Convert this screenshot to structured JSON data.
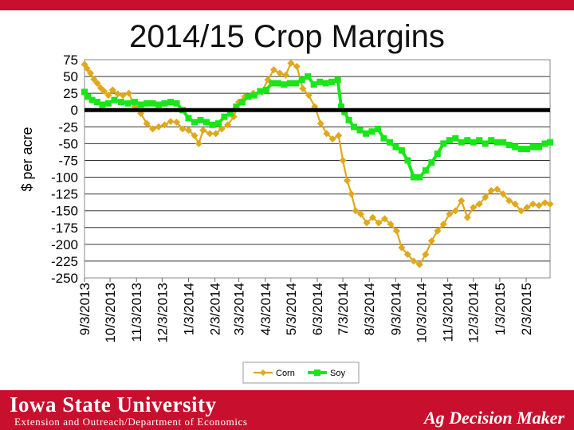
{
  "slide": {
    "footer_logo": "Iowa State University",
    "footer_subtitle": "Extension and Outreach/Department of Economics",
    "footer_brand": "Ag Decision Maker"
  },
  "colors": {
    "corn": "#e0a81c",
    "soy": "#19e619",
    "footer": "#c8102e",
    "zero_line": "#000000"
  },
  "chart_data": {
    "type": "line",
    "title": "2014/15 Crop Margins",
    "ylabel": "$ per acre",
    "xlabel": "",
    "ylim": [
      -250,
      75
    ],
    "yticks": [
      75,
      50,
      25,
      0,
      -25,
      -50,
      -75,
      -100,
      -125,
      -150,
      -175,
      -200,
      -225,
      -250
    ],
    "xlim": [
      "2013-09-03",
      "2015-03-03"
    ],
    "xticks": [
      "9/3/2013",
      "10/3/2013",
      "11/3/2013",
      "12/3/2013",
      "1/3/2014",
      "2/3/2014",
      "3/3/2014",
      "4/3/2014",
      "5/3/2014",
      "6/3/2014",
      "7/3/2014",
      "8/3/2014",
      "9/3/2014",
      "10/3/2014",
      "11/3/2014",
      "12/3/2014",
      "1/3/2015",
      "2/3/2015"
    ],
    "grid": "horizontal",
    "legend": "bottom",
    "series": [
      {
        "name": "Corn",
        "color": "#e0a81c",
        "points": [
          [
            "2013-09-03",
            68
          ],
          [
            "2013-09-06",
            62
          ],
          [
            "2013-09-10",
            55
          ],
          [
            "2013-09-14",
            46
          ],
          [
            "2013-09-18",
            40
          ],
          [
            "2013-09-22",
            33
          ],
          [
            "2013-09-26",
            28
          ],
          [
            "2013-10-01",
            22
          ],
          [
            "2013-10-06",
            30
          ],
          [
            "2013-10-12",
            24
          ],
          [
            "2013-10-18",
            22
          ],
          [
            "2013-10-25",
            25
          ],
          [
            "2013-11-01",
            5
          ],
          [
            "2013-11-08",
            -5
          ],
          [
            "2013-11-15",
            -20
          ],
          [
            "2013-11-22",
            -28
          ],
          [
            "2013-11-29",
            -25
          ],
          [
            "2013-12-06",
            -22
          ],
          [
            "2013-12-13",
            -17
          ],
          [
            "2013-12-20",
            -18
          ],
          [
            "2013-12-27",
            -28
          ],
          [
            "2014-01-03",
            -30
          ],
          [
            "2014-01-10",
            -38
          ],
          [
            "2014-01-15",
            -50
          ],
          [
            "2014-01-20",
            -30
          ],
          [
            "2014-01-28",
            -35
          ],
          [
            "2014-02-04",
            -35
          ],
          [
            "2014-02-11",
            -28
          ],
          [
            "2014-02-18",
            -22
          ],
          [
            "2014-02-25",
            -10
          ],
          [
            "2014-03-03",
            12
          ],
          [
            "2014-03-10",
            20
          ],
          [
            "2014-03-20",
            25
          ],
          [
            "2014-03-30",
            27
          ],
          [
            "2014-04-06",
            45
          ],
          [
            "2014-04-13",
            60
          ],
          [
            "2014-04-20",
            55
          ],
          [
            "2014-04-27",
            52
          ],
          [
            "2014-05-03",
            70
          ],
          [
            "2014-05-10",
            65
          ],
          [
            "2014-05-17",
            32
          ],
          [
            "2014-05-24",
            22
          ],
          [
            "2014-05-31",
            5
          ],
          [
            "2014-06-07",
            -20
          ],
          [
            "2014-06-14",
            -35
          ],
          [
            "2014-06-21",
            -43
          ],
          [
            "2014-06-28",
            -38
          ],
          [
            "2014-07-03",
            -75
          ],
          [
            "2014-07-08",
            -105
          ],
          [
            "2014-07-13",
            -125
          ],
          [
            "2014-07-18",
            -150
          ],
          [
            "2014-07-24",
            -155
          ],
          [
            "2014-07-31",
            -168
          ],
          [
            "2014-08-07",
            -160
          ],
          [
            "2014-08-14",
            -168
          ],
          [
            "2014-08-21",
            -162
          ],
          [
            "2014-08-28",
            -170
          ],
          [
            "2014-09-04",
            -180
          ],
          [
            "2014-09-10",
            -205
          ],
          [
            "2014-09-17",
            -215
          ],
          [
            "2014-09-24",
            -225
          ],
          [
            "2014-10-01",
            -230
          ],
          [
            "2014-10-08",
            -215
          ],
          [
            "2014-10-15",
            -195
          ],
          [
            "2014-10-22",
            -180
          ],
          [
            "2014-10-29",
            -170
          ],
          [
            "2014-11-05",
            -155
          ],
          [
            "2014-11-12",
            -150
          ],
          [
            "2014-11-19",
            -135
          ],
          [
            "2014-11-26",
            -160
          ],
          [
            "2014-12-03",
            -145
          ],
          [
            "2014-12-10",
            -140
          ],
          [
            "2014-12-17",
            -130
          ],
          [
            "2014-12-24",
            -120
          ],
          [
            "2014-12-31",
            -118
          ],
          [
            "2015-01-07",
            -125
          ],
          [
            "2015-01-14",
            -135
          ],
          [
            "2015-01-21",
            -140
          ],
          [
            "2015-01-28",
            -150
          ],
          [
            "2015-02-04",
            -145
          ],
          [
            "2015-02-11",
            -140
          ],
          [
            "2015-02-18",
            -142
          ],
          [
            "2015-02-25",
            -138
          ],
          [
            "2015-03-03",
            -140
          ]
        ]
      },
      {
        "name": "Soy",
        "color": "#19e619",
        "points": [
          [
            "2013-09-03",
            27
          ],
          [
            "2013-09-07",
            20
          ],
          [
            "2013-09-12",
            15
          ],
          [
            "2013-09-18",
            12
          ],
          [
            "2013-09-24",
            8
          ],
          [
            "2013-10-01",
            10
          ],
          [
            "2013-10-08",
            15
          ],
          [
            "2013-10-16",
            12
          ],
          [
            "2013-10-24",
            10
          ],
          [
            "2013-11-01",
            12
          ],
          [
            "2013-11-08",
            8
          ],
          [
            "2013-11-15",
            10
          ],
          [
            "2013-11-22",
            10
          ],
          [
            "2013-11-29",
            8
          ],
          [
            "2013-12-06",
            10
          ],
          [
            "2013-12-13",
            12
          ],
          [
            "2013-12-20",
            10
          ],
          [
            "2013-12-27",
            0
          ],
          [
            "2014-01-03",
            -12
          ],
          [
            "2014-01-10",
            -18
          ],
          [
            "2014-01-17",
            -15
          ],
          [
            "2014-01-24",
            -18
          ],
          [
            "2014-01-31",
            -22
          ],
          [
            "2014-02-07",
            -20
          ],
          [
            "2014-02-14",
            -10
          ],
          [
            "2014-02-21",
            -5
          ],
          [
            "2014-02-28",
            5
          ],
          [
            "2014-03-07",
            12
          ],
          [
            "2014-03-14",
            20
          ],
          [
            "2014-03-21",
            22
          ],
          [
            "2014-03-28",
            28
          ],
          [
            "2014-04-04",
            30
          ],
          [
            "2014-04-11",
            40
          ],
          [
            "2014-04-18",
            40
          ],
          [
            "2014-04-25",
            38
          ],
          [
            "2014-05-02",
            40
          ],
          [
            "2014-05-09",
            40
          ],
          [
            "2014-05-16",
            45
          ],
          [
            "2014-05-23",
            50
          ],
          [
            "2014-05-30",
            38
          ],
          [
            "2014-06-06",
            42
          ],
          [
            "2014-06-13",
            40
          ],
          [
            "2014-06-20",
            42
          ],
          [
            "2014-06-27",
            45
          ],
          [
            "2014-07-01",
            5
          ],
          [
            "2014-07-05",
            -3
          ],
          [
            "2014-07-10",
            -15
          ],
          [
            "2014-07-16",
            -25
          ],
          [
            "2014-07-23",
            -30
          ],
          [
            "2014-07-30",
            -35
          ],
          [
            "2014-08-06",
            -32
          ],
          [
            "2014-08-13",
            -28
          ],
          [
            "2014-08-20",
            -42
          ],
          [
            "2014-08-27",
            -48
          ],
          [
            "2014-09-03",
            -55
          ],
          [
            "2014-09-10",
            -60
          ],
          [
            "2014-09-17",
            -75
          ],
          [
            "2014-09-24",
            -100
          ],
          [
            "2014-10-01",
            -100
          ],
          [
            "2014-10-08",
            -90
          ],
          [
            "2014-10-15",
            -78
          ],
          [
            "2014-10-22",
            -65
          ],
          [
            "2014-10-29",
            -50
          ],
          [
            "2014-11-05",
            -45
          ],
          [
            "2014-11-12",
            -42
          ],
          [
            "2014-11-19",
            -48
          ],
          [
            "2014-11-26",
            -45
          ],
          [
            "2014-12-03",
            -48
          ],
          [
            "2014-12-10",
            -45
          ],
          [
            "2014-12-17",
            -50
          ],
          [
            "2014-12-24",
            -45
          ],
          [
            "2014-12-31",
            -48
          ],
          [
            "2015-01-07",
            -48
          ],
          [
            "2015-01-14",
            -52
          ],
          [
            "2015-01-21",
            -55
          ],
          [
            "2015-01-28",
            -58
          ],
          [
            "2015-02-04",
            -58
          ],
          [
            "2015-02-11",
            -55
          ],
          [
            "2015-02-18",
            -55
          ],
          [
            "2015-02-25",
            -50
          ],
          [
            "2015-03-03",
            -48
          ]
        ]
      }
    ]
  }
}
